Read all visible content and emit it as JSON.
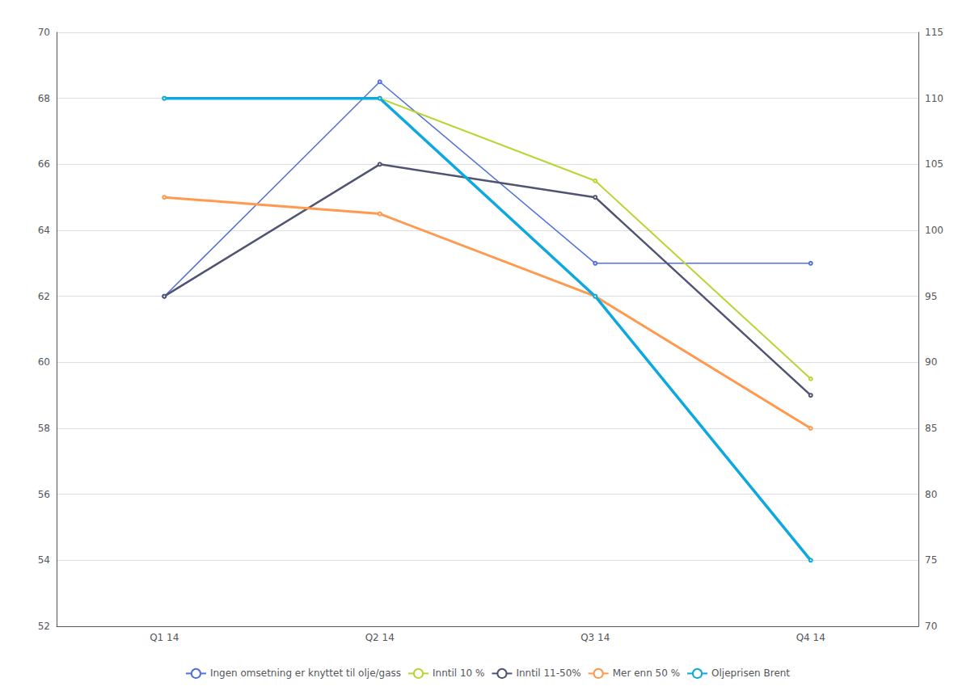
{
  "chart_data": {
    "type": "line",
    "categories": [
      "Q1 14",
      "Q2 14",
      "Q3 14",
      "Q4 14"
    ],
    "series": [
      {
        "name": "Ingen omsetning er knyttet til olje/gass",
        "values": [
          62.0,
          68.5,
          63.0,
          63.0
        ]
      },
      {
        "name": "Inntil 10 %",
        "values": [
          68.0,
          68.0,
          65.5,
          59.5
        ]
      },
      {
        "name": "Inntil 11-50%",
        "values": [
          62.0,
          66.0,
          65.0,
          59.0
        ]
      },
      {
        "name": "Mer enn 50 %",
        "values": [
          65.0,
          64.5,
          62.0,
          58.0
        ]
      },
      {
        "name": "Oljeprisen Brent",
        "values": [
          110.0,
          110.0,
          95.0,
          75.0
        ],
        "axis": "y2"
      }
    ],
    "ylim": [
      52,
      70
    ],
    "yticks": [
      52,
      54,
      56,
      58,
      60,
      62,
      64,
      66,
      68,
      70
    ],
    "y2lim": [
      70,
      115
    ],
    "y2ticks": [
      70,
      75,
      80,
      85,
      90,
      95,
      100,
      105,
      110,
      115
    ],
    "grid": true,
    "legend": "bottom"
  }
}
